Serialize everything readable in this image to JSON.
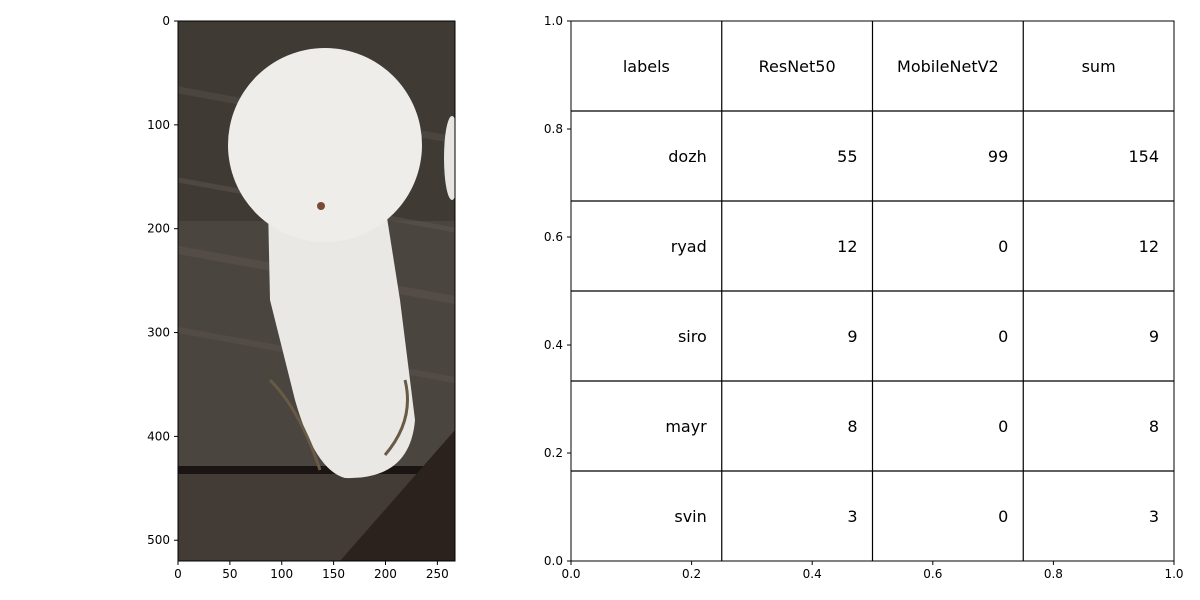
{
  "chart_data": [
    {
      "type": "image",
      "subject": "white puffball mushroom photo",
      "xlim": [
        0,
        267
      ],
      "ylim": [
        520,
        0
      ],
      "xticks": [
        0,
        50,
        100,
        150,
        200,
        250
      ],
      "yticks": [
        0,
        100,
        200,
        300,
        400,
        500
      ],
      "xtick_labels": [
        "0",
        "50",
        "100",
        "150",
        "200",
        "250"
      ],
      "ytick_labels": [
        "0",
        "100",
        "200",
        "300",
        "400",
        "500"
      ],
      "colors": {
        "wood_dark": "#3a342f",
        "wood_mid": "#5a524b",
        "mushroom": "#ecebe8",
        "soil": "#2b211d"
      }
    },
    {
      "type": "table",
      "xlim": [
        0,
        1
      ],
      "ylim": [
        0,
        1
      ],
      "xticks": [
        0,
        0.2,
        0.4,
        0.6,
        0.8,
        1
      ],
      "yticks": [
        0,
        0.2,
        0.4,
        0.6,
        0.8,
        1
      ],
      "xtick_labels": [
        "0.0",
        "0.2",
        "0.4",
        "0.6",
        "0.8",
        "1.0"
      ],
      "ytick_labels": [
        "0.0",
        "0.2",
        "0.4",
        "0.6",
        "0.8",
        "1.0"
      ],
      "columns": [
        "labels",
        "ResNet50",
        "MobileNetV2",
        "sum"
      ],
      "rows": [
        [
          "dozh",
          "55",
          "99",
          "154"
        ],
        [
          "ryad",
          "12",
          "0",
          "12"
        ],
        [
          "siro",
          "9",
          "0",
          "9"
        ],
        [
          "mayr",
          "8",
          "0",
          "8"
        ],
        [
          "svin",
          "3",
          "0",
          "3"
        ]
      ]
    }
  ]
}
